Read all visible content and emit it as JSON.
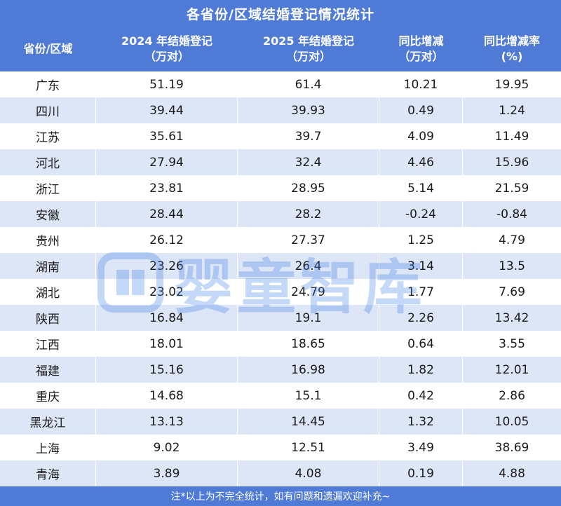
{
  "title": "各省份/区域结婚登记情况统计",
  "header": {
    "col1": [
      "省份/区域"
    ],
    "col2": [
      "2024 年结婚登记",
      "（万对）"
    ],
    "col3": [
      "2025 年结婚登记",
      "（万对）"
    ],
    "col4": [
      "同比增减",
      "（万对）"
    ],
    "col5": [
      "同比增减率",
      "(%)"
    ]
  },
  "rows": [
    {
      "region": "广东",
      "y2024": "51.19",
      "y2025": "61.4",
      "diff": "10.21",
      "rate": "19.95"
    },
    {
      "region": "四川",
      "y2024": "39.44",
      "y2025": "39.93",
      "diff": "0.49",
      "rate": "1.24"
    },
    {
      "region": "江苏",
      "y2024": "35.61",
      "y2025": "39.7",
      "diff": "4.09",
      "rate": "11.49"
    },
    {
      "region": "河北",
      "y2024": "27.94",
      "y2025": "32.4",
      "diff": "4.46",
      "rate": "15.96"
    },
    {
      "region": "浙江",
      "y2024": "23.81",
      "y2025": "28.95",
      "diff": "5.14",
      "rate": "21.59"
    },
    {
      "region": "安徽",
      "y2024": "28.44",
      "y2025": "28.2",
      "diff": "-0.24",
      "rate": "-0.84"
    },
    {
      "region": "贵州",
      "y2024": "26.12",
      "y2025": "27.37",
      "diff": "1.25",
      "rate": "4.79"
    },
    {
      "region": "湖南",
      "y2024": "23.26",
      "y2025": "26.4",
      "diff": "3.14",
      "rate": "13.5"
    },
    {
      "region": "湖北",
      "y2024": "23.02",
      "y2025": "24.79",
      "diff": "1.77",
      "rate": "7.69"
    },
    {
      "region": "陕西",
      "y2024": "16.84",
      "y2025": "19.1",
      "diff": "2.26",
      "rate": "13.42"
    },
    {
      "region": "江西",
      "y2024": "18.01",
      "y2025": "18.65",
      "diff": "0.64",
      "rate": "3.55"
    },
    {
      "region": "福建",
      "y2024": "15.16",
      "y2025": "16.98",
      "diff": "1.82",
      "rate": "12.01"
    },
    {
      "region": "重庆",
      "y2024": "14.68",
      "y2025": "15.1",
      "diff": "0.42",
      "rate": "2.86"
    },
    {
      "region": "黑龙江",
      "y2024": "13.13",
      "y2025": "14.45",
      "diff": "1.32",
      "rate": "10.05"
    },
    {
      "region": "上海",
      "y2024": "9.02",
      "y2025": "12.51",
      "diff": "3.49",
      "rate": "38.69"
    },
    {
      "region": "青海",
      "y2024": "3.89",
      "y2025": "4.08",
      "diff": "0.19",
      "rate": "4.88"
    }
  ],
  "footer": "注*以上为不完全统计，如有问题和遗漏欢迎补充~",
  "watermark": {
    "text": "婴童智库",
    "icon": "book-logo-icon"
  },
  "colors": {
    "header_bg": "#4f7bd6",
    "alt_row_bg": "#dde6f7",
    "watermark": "#3f7fe6"
  }
}
